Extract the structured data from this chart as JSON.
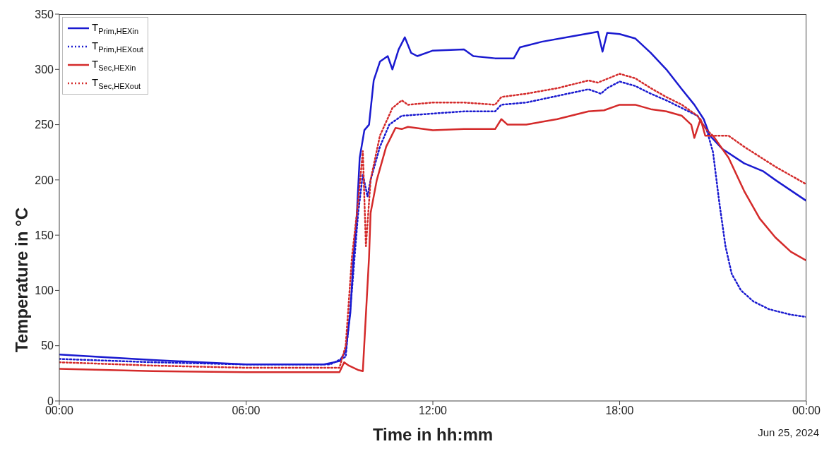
{
  "chart_data": {
    "type": "line",
    "xlabel": "Time in hh:mm",
    "ylabel": "Temperature in °C",
    "annotations": [
      "Jun 25, 2024"
    ],
    "xlim": [
      0,
      24
    ],
    "xticks": [
      {
        "value": 0,
        "label": "00:00"
      },
      {
        "value": 6,
        "label": "06:00"
      },
      {
        "value": 12,
        "label": "12:00"
      },
      {
        "value": 18,
        "label": "18:00"
      },
      {
        "value": 24,
        "label": "00:00"
      }
    ],
    "ylim": [
      0,
      350
    ],
    "yticks": [
      0,
      50,
      100,
      150,
      200,
      250,
      300,
      350
    ],
    "grid": false,
    "legend": "top left",
    "marker": "none",
    "series": [
      {
        "name": "T$_{Prim,HEXin}$",
        "color": "#1a1ad0",
        "line_style": "solid",
        "x": [
          0,
          3,
          6,
          8.5,
          9,
          9.2,
          9.35,
          9.45,
          9.55,
          9.65,
          9.8,
          9.95,
          10.1,
          10.3,
          10.55,
          10.7,
          10.9,
          11.1,
          11.3,
          11.5,
          12,
          13,
          13.3,
          14,
          14.6,
          14.8,
          15.5,
          16.5,
          17.3,
          17.45,
          17.6,
          18,
          18.5,
          19,
          19.5,
          20,
          20.4,
          20.7,
          20.9,
          21.3,
          22,
          22.6,
          23,
          24
        ],
        "values": [
          42,
          37,
          33,
          33,
          36,
          45,
          80,
          130,
          165,
          220,
          245,
          250,
          290,
          307,
          312,
          300,
          318,
          329,
          315,
          312,
          317,
          318,
          312,
          310,
          310,
          320,
          325,
          330,
          334,
          316,
          333,
          332,
          328,
          315,
          300,
          282,
          268,
          255,
          240,
          228,
          215,
          208,
          200,
          181
        ]
      },
      {
        "name": "T$_{Prim,HEXout}$",
        "color": "#1a1ad0",
        "line_style": "dotted",
        "x": [
          0,
          3,
          6,
          8.7,
          9.2,
          9.4,
          9.6,
          9.75,
          9.9,
          10,
          10.3,
          10.6,
          11,
          12,
          13,
          14,
          14.2,
          15,
          16,
          17,
          17.4,
          17.6,
          18,
          18.5,
          19,
          19.5,
          20,
          20.5,
          20.8,
          21,
          21.2,
          21.4,
          21.6,
          21.9,
          22.3,
          22.8,
          23.5,
          24
        ],
        "values": [
          38,
          35,
          33,
          33,
          40,
          100,
          170,
          205,
          185,
          200,
          230,
          250,
          258,
          260,
          262,
          262,
          268,
          270,
          276,
          282,
          278,
          283,
          289,
          285,
          278,
          272,
          265,
          258,
          245,
          225,
          180,
          140,
          115,
          100,
          90,
          83,
          78,
          76
        ]
      },
      {
        "name": "T$_{Sec,HEXin}$",
        "color": "#d42a2a",
        "line_style": "solid",
        "x": [
          0,
          3,
          6,
          9,
          9.15,
          9.3,
          9.6,
          9.75,
          9.95,
          10,
          10.2,
          10.5,
          10.8,
          11,
          11.2,
          12,
          13,
          14,
          14.2,
          14.4,
          15,
          16,
          17,
          17.5,
          18,
          18.5,
          19,
          19.5,
          20,
          20.3,
          20.4,
          20.6,
          20.75,
          21,
          21.5,
          22,
          22.5,
          23,
          23.5,
          24
        ],
        "values": [
          29,
          27,
          26,
          26,
          35,
          32,
          28,
          27,
          130,
          170,
          200,
          230,
          247,
          246,
          248,
          245,
          246,
          246,
          255,
          250,
          250,
          255,
          262,
          263,
          268,
          268,
          264,
          262,
          258,
          250,
          238,
          255,
          240,
          240,
          220,
          190,
          165,
          148,
          135,
          127
        ]
      },
      {
        "name": "T$_{Sec,HEXout}$",
        "color": "#d42a2a",
        "line_style": "dotted",
        "x": [
          0,
          3,
          6,
          9,
          9.2,
          9.4,
          9.6,
          9.75,
          9.85,
          10,
          10.3,
          10.7,
          11,
          11.2,
          12,
          13,
          14,
          14.2,
          15,
          16,
          17,
          17.3,
          18,
          18.5,
          19,
          19.5,
          20,
          20.5,
          20.8,
          21,
          21.5,
          22,
          23,
          24
        ],
        "values": [
          35,
          32,
          30,
          30,
          50,
          130,
          180,
          226,
          140,
          200,
          240,
          265,
          272,
          268,
          270,
          270,
          268,
          275,
          278,
          283,
          290,
          288,
          296,
          292,
          283,
          275,
          268,
          258,
          245,
          240,
          240,
          230,
          212,
          196
        ]
      }
    ]
  }
}
